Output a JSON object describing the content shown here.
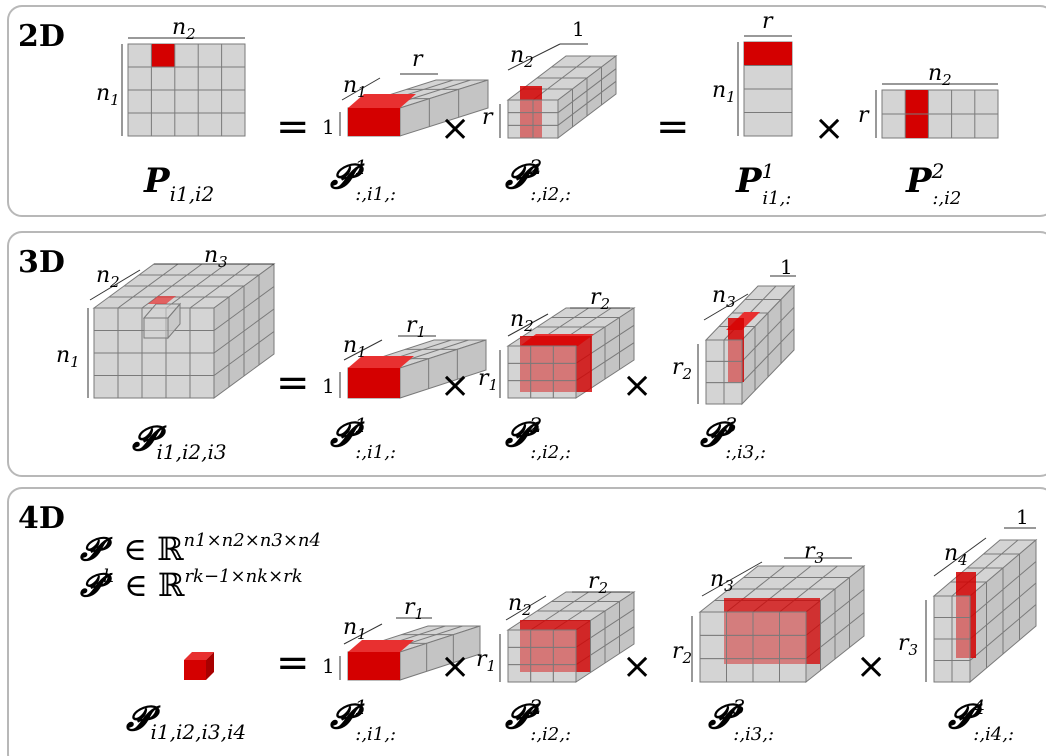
{
  "panels": [
    {
      "label": "2D"
    },
    {
      "label": "3D"
    },
    {
      "label": "4D"
    }
  ],
  "two_d": {
    "matrix": {
      "top": "n",
      "top_sub": "2",
      "side": "n",
      "side_sub": "1",
      "name": "P",
      "sub": "i1,i2"
    },
    "eq1": "=",
    "core1": {
      "top": "r",
      "depth": "n",
      "depth_sub": "1",
      "left": "1",
      "name": "𝓟",
      "sup": "1",
      "sub": ":,i1,:"
    },
    "times1": "×",
    "core2": {
      "depth": "n",
      "depth_sub": "2",
      "top": "1",
      "left": "r",
      "name": "𝓟",
      "sup": "2",
      "sub": ":,i2,:"
    },
    "eq2": "=",
    "factor1": {
      "top": "r",
      "side": "n",
      "side_sub": "1",
      "name": "P",
      "sup": "1",
      "sub": "i1,:"
    },
    "times2": "×",
    "factor2": {
      "top": "n",
      "top_sub": "2",
      "left": "r",
      "name": "P",
      "sup": "2",
      "sub": ":,i2"
    }
  },
  "three_d": {
    "tensor": {
      "depth": "n",
      "depth_sub": "2",
      "top": "n",
      "top_sub": "3",
      "side": "n",
      "side_sub": "1",
      "name": "𝓟",
      "sub": "i1,i2,i3"
    },
    "eq": "=",
    "core1": {
      "depth": "n",
      "depth_sub": "1",
      "top": "r",
      "top_sub": "1",
      "left": "1",
      "name": "𝓟",
      "sup": "1",
      "sub": ":,i1,:"
    },
    "times1": "×",
    "core2": {
      "depth": "n",
      "depth_sub": "2",
      "top": "r",
      "top_sub": "2",
      "left": "r",
      "left_sub": "1",
      "name": "𝓟",
      "sup": "2",
      "sub": ":,i2,:"
    },
    "times2": "×",
    "core3": {
      "depth": "n",
      "depth_sub": "3",
      "top": "1",
      "left": "r",
      "left_sub": "2",
      "name": "𝓟",
      "sup": "3",
      "sub": ":,i3,:"
    }
  },
  "four_d": {
    "formula1": {
      "name": "𝓟",
      "in": "∈ ℝ",
      "exp": "n1×n2×n3×n4"
    },
    "formula2": {
      "name": "𝓟",
      "sup": "k",
      "in": "∈ ℝ",
      "exp": "rk−1×nk×rk"
    },
    "eq": "=",
    "element": {
      "name": "𝓟",
      "sub": "i1,i2,i3,i4"
    },
    "core1": {
      "depth": "n",
      "depth_sub": "1",
      "top": "r",
      "top_sub": "1",
      "left": "1",
      "name": "𝓟",
      "sup": "1",
      "sub": ":,i1,:"
    },
    "times1": "×",
    "core2": {
      "depth": "n",
      "depth_sub": "2",
      "top": "r",
      "top_sub": "2",
      "left": "r",
      "left_sub": "1",
      "name": "𝓟",
      "sup": "2",
      "sub": ":,i2,:"
    },
    "times2": "×",
    "core3": {
      "depth": "n",
      "depth_sub": "3",
      "top": "r",
      "top_sub": "3",
      "left": "r",
      "left_sub": "2",
      "name": "𝓟",
      "sup": "3",
      "sub": ":,i3,:"
    },
    "times3": "×",
    "core4": {
      "depth": "n",
      "depth_sub": "4",
      "top": "1",
      "left": "r",
      "left_sub": "3",
      "name": "𝓟",
      "sup": "4",
      "sub": ":,i4,:"
    }
  },
  "colors": {
    "highlight": "#d40000",
    "cell": "#d4d4d4",
    "grid": "#7a7a7a",
    "panel_border": "#b8b8b8"
  }
}
